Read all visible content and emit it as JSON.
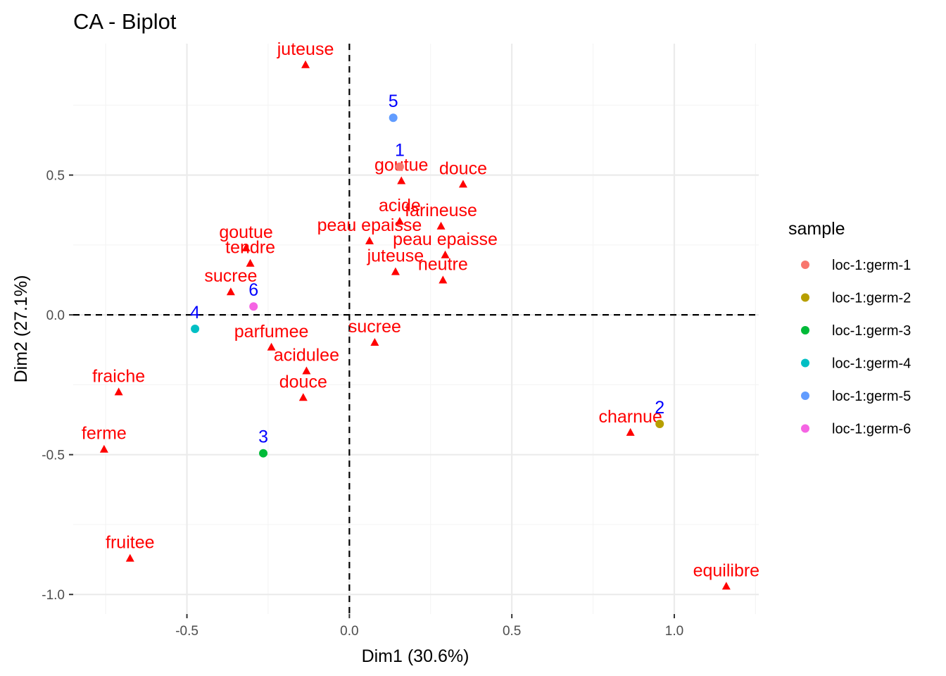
{
  "chart_data": {
    "type": "scatter",
    "title": "CA - Biplot",
    "xlabel": "Dim1 (30.6%)",
    "ylabel": "Dim2 (27.1%)",
    "xlim": [
      -0.85,
      1.26
    ],
    "ylim": [
      -1.07,
      0.97
    ],
    "xticks": [
      -0.5,
      0.0,
      0.5,
      1.0
    ],
    "xtick_labels": [
      "-0.5",
      "0.0",
      "0.5",
      "1.0"
    ],
    "yticks": [
      -1.0,
      -0.5,
      0.0,
      0.5
    ],
    "ytick_labels": [
      "-1.0",
      "-0.5",
      "0.0",
      "0.5"
    ],
    "grid": true,
    "reference_lines": {
      "x": 0.0,
      "y": 0.0
    },
    "legend": {
      "title": "sample",
      "position": "right",
      "entries": [
        {
          "label": "loc-1:germ-1",
          "color": "#F8766D"
        },
        {
          "label": "loc-1:germ-2",
          "color": "#B79F00"
        },
        {
          "label": "loc-1:germ-3",
          "color": "#00BA38"
        },
        {
          "label": "loc-1:germ-4",
          "color": "#00BFC4"
        },
        {
          "label": "loc-1:germ-5",
          "color": "#619CFF"
        },
        {
          "label": "loc-1:germ-6",
          "color": "#F564E3"
        }
      ]
    },
    "row_points": [
      {
        "label": "1",
        "x": 0.155,
        "y": 0.53,
        "color": "#F8766D"
      },
      {
        "label": "2",
        "x": 0.955,
        "y": -0.39,
        "color": "#B79F00"
      },
      {
        "label": "3",
        "x": -0.265,
        "y": -0.495,
        "color": "#00BA38"
      },
      {
        "label": "4",
        "x": -0.475,
        "y": -0.05,
        "color": "#00BFC4"
      },
      {
        "label": "5",
        "x": 0.135,
        "y": 0.705,
        "color": "#619CFF"
      },
      {
        "label": "6",
        "x": -0.295,
        "y": 0.03,
        "color": "#F564E3"
      }
    ],
    "col_points_color": "#ff0000",
    "row_labels_color": "#0000ff",
    "col_points": [
      {
        "label": "juteuse",
        "x": -0.135,
        "y": 0.895
      },
      {
        "label": "goutue",
        "x": 0.16,
        "y": 0.48
      },
      {
        "label": "douce",
        "x": 0.35,
        "y": 0.468
      },
      {
        "label": "acide",
        "x": 0.155,
        "y": 0.335
      },
      {
        "label": "farineuse",
        "x": 0.282,
        "y": 0.318
      },
      {
        "label": "peau epaisse",
        "x": 0.062,
        "y": 0.265
      },
      {
        "label": "peau epaisse",
        "x": 0.295,
        "y": 0.215
      },
      {
        "label": "juteuse",
        "x": 0.142,
        "y": 0.155
      },
      {
        "label": "neutre",
        "x": 0.288,
        "y": 0.125
      },
      {
        "label": "goutue",
        "x": -0.318,
        "y": 0.24
      },
      {
        "label": "tendre",
        "x": -0.305,
        "y": 0.185
      },
      {
        "label": "sucree",
        "x": -0.365,
        "y": 0.083
      },
      {
        "label": "parfumee",
        "x": -0.24,
        "y": -0.115
      },
      {
        "label": "sucree",
        "x": 0.078,
        "y": -0.098
      },
      {
        "label": "acidulee",
        "x": -0.132,
        "y": -0.2
      },
      {
        "label": "douce",
        "x": -0.142,
        "y": -0.295
      },
      {
        "label": "fraiche",
        "x": -0.71,
        "y": -0.275
      },
      {
        "label": "ferme",
        "x": -0.755,
        "y": -0.48
      },
      {
        "label": "fruitee",
        "x": -0.675,
        "y": -0.87
      },
      {
        "label": "charnue",
        "x": 0.865,
        "y": -0.42
      },
      {
        "label": "equilibre",
        "x": 1.16,
        "y": -0.97
      }
    ]
  }
}
